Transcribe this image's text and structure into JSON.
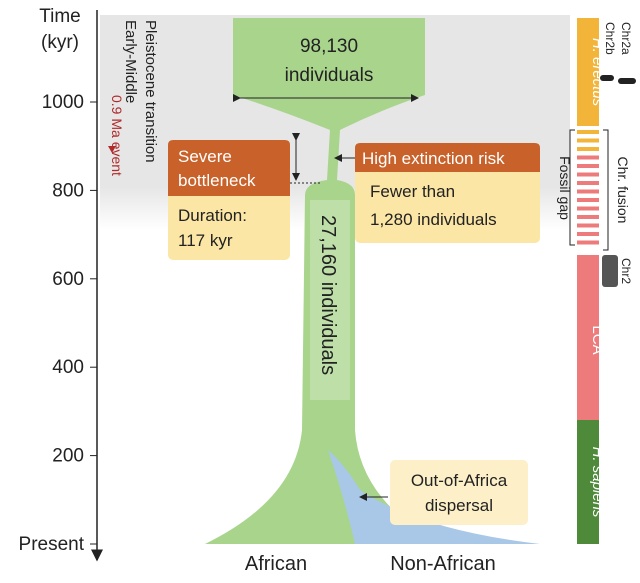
{
  "axis": {
    "title": [
      "Time",
      "(kyr)"
    ],
    "ticks": [
      "1000",
      "800",
      "600",
      "400",
      "200",
      "Present"
    ]
  },
  "period": {
    "label": [
      "Early-Middle",
      "Pleistocene transition"
    ],
    "event": "0.9 Ma event"
  },
  "ancestral": {
    "count": "98,130",
    "unit": "individuals"
  },
  "bottleneck": {
    "title": [
      "Severe",
      "bottleneck"
    ],
    "duration": [
      "Duration:",
      "117 kyr"
    ]
  },
  "risk": {
    "title": "High extinction risk",
    "detail": [
      "Fewer than",
      "1,280 individuals"
    ]
  },
  "stem": "27,160 individuals",
  "dispersal": [
    "Out-of-Africa",
    "dispersal"
  ],
  "populations": [
    "African",
    "Non-African"
  ],
  "timeline": {
    "erectus": "H. erectus",
    "gap": "Fossil gap",
    "fusion": "Chr. fusion",
    "lca": "LCA",
    "sapiens": "H. sapiens",
    "chr2a": "Chr2a",
    "chr2b": "Chr2b",
    "chr2": "Chr2"
  }
}
